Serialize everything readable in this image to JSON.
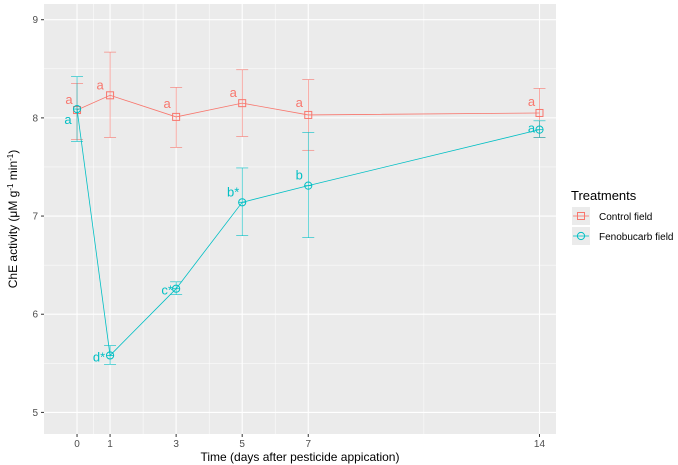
{
  "chart_data": {
    "type": "line",
    "xlabel": "Time (days after pesticide appication)",
    "ylabel_parts": {
      "pre": "ChE activity (μM g",
      "sup1": "-1",
      "mid": " min",
      "sup2": "-1",
      "post": ")"
    },
    "x_ticks": [
      0,
      1,
      3,
      5,
      7,
      14
    ],
    "y_ticks": [
      5,
      6,
      7,
      8,
      9
    ],
    "xlim": [
      -1,
      14.5
    ],
    "ylim": [
      4.78,
      9.16
    ],
    "grid": true,
    "legend": {
      "title": "Treatments",
      "placement": "right",
      "entries": [
        "Control field",
        "Fenobucarb field"
      ]
    },
    "series": [
      {
        "name": "Control field",
        "color": "#F8766D",
        "marker": "square",
        "x": [
          0,
          1,
          3,
          5,
          7,
          14
        ],
        "y": [
          8.08,
          8.23,
          8.01,
          8.15,
          8.03,
          8.05
        ],
        "err_low": [
          7.78,
          7.8,
          7.7,
          7.81,
          7.67,
          7.8
        ],
        "err_high": [
          8.35,
          8.67,
          8.31,
          8.49,
          8.39,
          8.3
        ],
        "labels": [
          "a",
          "a",
          "a",
          "a",
          "a",
          "a"
        ]
      },
      {
        "name": "Fenobucarb field",
        "color": "#00BFC4",
        "marker": "circle",
        "x": [
          0,
          1,
          3,
          5,
          7,
          14
        ],
        "y": [
          8.09,
          5.58,
          6.26,
          7.14,
          7.31,
          7.88
        ],
        "err_low": [
          7.76,
          5.49,
          6.2,
          6.8,
          6.78,
          7.8
        ],
        "err_high": [
          8.42,
          5.68,
          6.33,
          7.49,
          7.85,
          7.97
        ],
        "labels": [
          "a",
          "d*",
          "c*",
          "b*",
          "b",
          "a"
        ]
      }
    ]
  }
}
